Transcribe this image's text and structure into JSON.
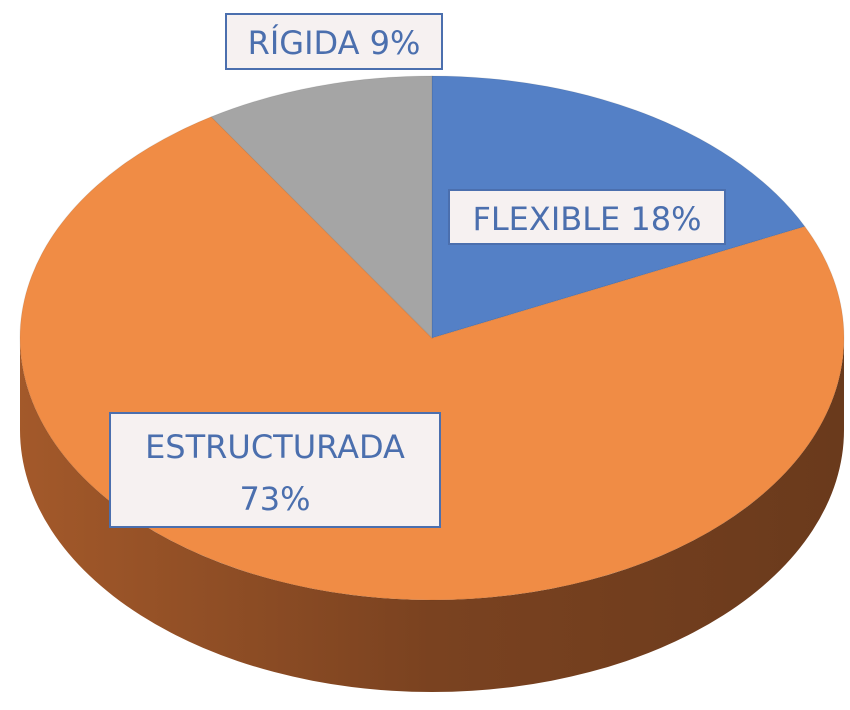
{
  "chart_data": {
    "type": "pie",
    "categories": [
      "FLEXIBLE",
      "ESTRUCTURADA",
      "RÍGIDA"
    ],
    "values": [
      18,
      73,
      9
    ],
    "value_labels": [
      "18%",
      "73%",
      "9%"
    ],
    "colors": [
      "#5480c6",
      "#f08c45",
      "#a5a5a5"
    ]
  }
}
